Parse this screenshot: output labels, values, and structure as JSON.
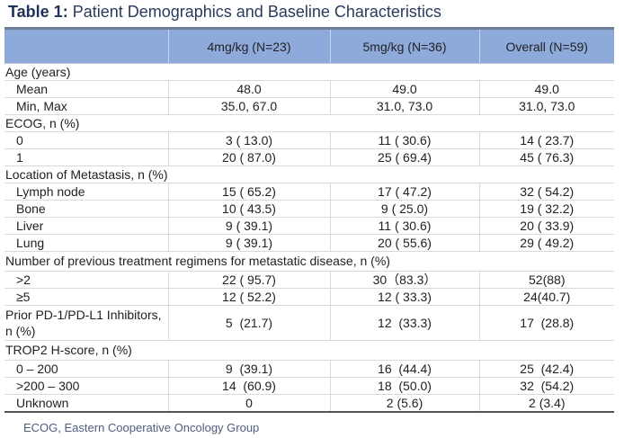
{
  "title": {
    "label": "Table 1:",
    "text": " Patient Demographics and Baseline Characteristics"
  },
  "columns": [
    "",
    "4mg/kg (N=23)",
    "5mg/kg (N=36)",
    "Overall (N=59)"
  ],
  "rows": [
    {
      "type": "section",
      "label": "Age (years)"
    },
    {
      "type": "sub",
      "label": "Mean",
      "values": [
        "48.0",
        "49.0",
        "49.0"
      ]
    },
    {
      "type": "sub",
      "label": "Min, Max",
      "values": [
        "35.0, 67.0",
        "31.0, 73.0",
        "31.0, 73.0"
      ]
    },
    {
      "type": "section",
      "label": "ECOG, n (%)"
    },
    {
      "type": "sub",
      "label": "0",
      "values": [
        "3 ( 13.0)",
        "11 ( 30.6)",
        "14 ( 23.7)"
      ]
    },
    {
      "type": "sub",
      "label": "1",
      "values": [
        "20 ( 87.0)",
        "25 ( 69.4)",
        "45 ( 76.3)"
      ]
    },
    {
      "type": "section",
      "label": "Location of Metastasis, n (%)"
    },
    {
      "type": "sub",
      "label": "Lymph node",
      "values": [
        "15 ( 65.2)",
        "17 ( 47.2)",
        "32 ( 54.2)"
      ]
    },
    {
      "type": "sub",
      "label": "Bone",
      "values": [
        "10 ( 43.5)",
        "9 ( 25.0)",
        "19 ( 32.2)"
      ]
    },
    {
      "type": "sub",
      "label": "Liver",
      "values": [
        "9 ( 39.1)",
        "11 ( 30.6)",
        "20 ( 33.9)"
      ]
    },
    {
      "type": "sub",
      "label": "Lung",
      "values": [
        "9 ( 39.1)",
        "20 ( 55.6)",
        "29 ( 49.2)"
      ]
    },
    {
      "type": "section-tall",
      "label": "Number of previous treatment regimens for metastatic disease, n (%)"
    },
    {
      "type": "sub",
      "label": ">2",
      "values": [
        "22 ( 95.7)",
        "30（83.3）",
        "52(88)"
      ]
    },
    {
      "type": "sub",
      "label": "≥5",
      "values": [
        "12 ( 52.2)",
        "12 ( 33.3)",
        "24(40.7)"
      ]
    },
    {
      "type": "two-line",
      "label": "Prior PD-1/PD-L1 Inhibitors, n (%)",
      "values": [
        "5  (21.7)",
        "12  (33.3)",
        "17  (28.8)"
      ]
    },
    {
      "type": "section-tall",
      "label": "TROP2  H-score, n (%)"
    },
    {
      "type": "sub",
      "label": "0 – 200",
      "values": [
        "9  (39.1)",
        "16  (44.4)",
        "25  (42.4)"
      ]
    },
    {
      "type": "sub",
      "label": ">200 – 300",
      "values": [
        "14  (60.9)",
        "18  (50.0)",
        "32  (54.2)"
      ]
    },
    {
      "type": "sub",
      "label": "Unknown",
      "values": [
        "0",
        "2 (5.6)",
        "2 (3.4)"
      ]
    }
  ],
  "footnote": "ECOG, Eastern Cooperative Oncology Group"
}
